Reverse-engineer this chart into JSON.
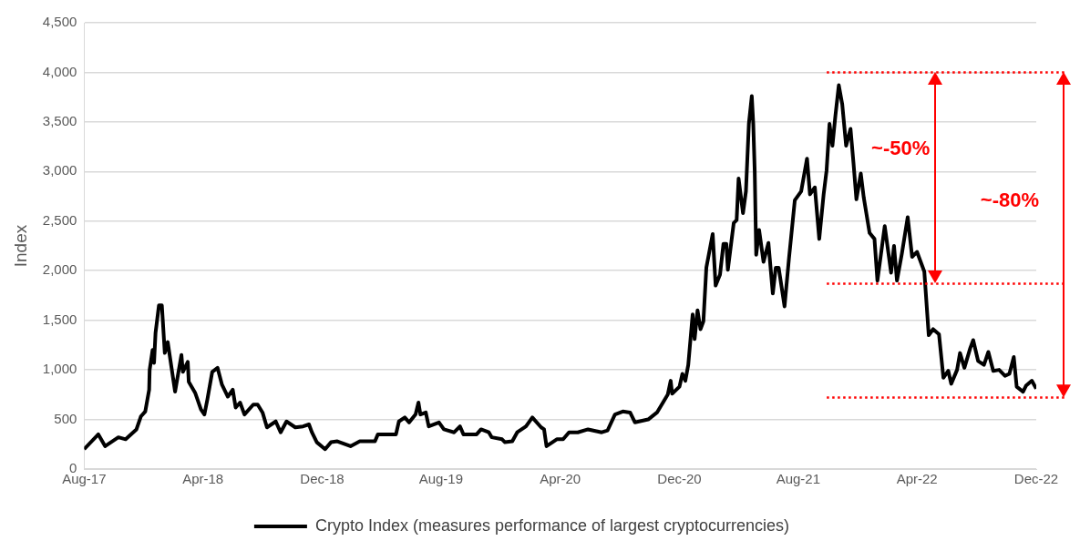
{
  "chart_data": {
    "type": "line",
    "ylabel": "Index",
    "legend": "bottom",
    "grid": "y",
    "marker": "none",
    "line_style": "solid",
    "xlim": [
      "2017-08",
      "2022-12"
    ],
    "xticks": [
      {
        "value": "2017-08",
        "label": "Aug-17"
      },
      {
        "value": "2018-04",
        "label": "Apr-18"
      },
      {
        "value": "2018-12",
        "label": "Dec-18"
      },
      {
        "value": "2019-08",
        "label": "Aug-19"
      },
      {
        "value": "2020-04",
        "label": "Apr-20"
      },
      {
        "value": "2020-12",
        "label": "Dec-20"
      },
      {
        "value": "2021-08",
        "label": "Aug-21"
      },
      {
        "value": "2022-04",
        "label": "Apr-22"
      },
      {
        "value": "2022-12",
        "label": "Dec-22"
      }
    ],
    "ylim": [
      0,
      4500
    ],
    "yticks": [
      0,
      {
        "value": 500,
        "label": "500"
      },
      {
        "value": 1000,
        "label": "1,000"
      },
      {
        "value": 1500,
        "label": "1,500"
      },
      {
        "value": 2000,
        "label": "2,000"
      },
      {
        "value": 2500,
        "label": "2,500"
      },
      {
        "value": 3000,
        "label": "3,000"
      },
      {
        "value": 3500,
        "label": "3,500"
      },
      {
        "value": 4000,
        "label": "4,000"
      },
      {
        "value": 4500,
        "label": "4,500"
      }
    ],
    "series": [
      {
        "name": "Crypto Index (measures performance of largest cryptocurrencies)",
        "color": "#000000",
        "x": [
          "2017-08-01",
          "2017-08-30",
          "2017-09-13",
          "2017-10-10",
          "2017-10-25",
          "2017-11-16",
          "2017-11-25",
          "2017-12-04",
          "2017-12-12",
          "2017-12-13",
          "2017-12-19",
          "2017-12-22",
          "2017-12-25",
          "2018-01-01",
          "2018-01-07",
          "2018-01-13",
          "2018-01-19",
          "2018-02-03",
          "2018-02-16",
          "2018-02-19",
          "2018-03-01",
          "2018-03-03",
          "2018-03-16",
          "2018-03-28",
          "2018-04-04",
          "2018-04-10",
          "2018-04-20",
          "2018-05-01",
          "2018-05-10",
          "2018-05-22",
          "2018-06-01",
          "2018-06-07",
          "2018-06-16",
          "2018-06-25",
          "2018-07-13",
          "2018-07-22",
          "2018-08-01",
          "2018-08-10",
          "2018-08-19",
          "2018-08-28",
          "2018-09-07",
          "2018-09-19",
          "2018-10-07",
          "2018-10-23",
          "2018-11-04",
          "2018-11-10",
          "2018-11-20",
          "2018-12-07",
          "2018-12-19",
          "2019-01-01",
          "2019-01-28",
          "2019-02-16",
          "2019-03-19",
          "2019-03-25",
          "2019-05-01",
          "2019-05-07",
          "2019-05-19",
          "2019-05-28",
          "2019-06-10",
          "2019-06-16",
          "2019-06-20",
          "2019-07-01",
          "2019-07-07",
          "2019-07-28",
          "2019-08-07",
          "2019-08-28",
          "2019-09-09",
          "2019-09-16",
          "2019-10-13",
          "2019-10-22",
          "2019-11-07",
          "2019-11-13",
          "2019-12-04",
          "2019-12-10",
          "2019-12-25",
          "2020-01-04",
          "2020-01-22",
          "2020-02-04",
          "2020-02-22",
          "2020-02-28",
          "2020-03-04",
          "2020-03-16",
          "2020-03-25",
          "2020-04-07",
          "2020-04-19",
          "2020-05-07",
          "2020-05-28",
          "2020-06-25",
          "2020-07-07",
          "2020-07-22",
          "2020-08-07",
          "2020-08-22",
          "2020-09-01",
          "2020-09-28",
          "2020-10-16",
          "2020-11-07",
          "2020-11-13",
          "2020-11-16",
          "2020-12-01",
          "2020-12-07",
          "2020-12-13",
          "2020-12-19",
          "2020-12-28",
          "2021-01-01",
          "2021-01-07",
          "2021-01-13",
          "2021-01-19",
          "2021-01-25",
          "2021-02-07",
          "2021-02-13",
          "2021-02-22",
          "2021-03-01",
          "2021-03-07",
          "2021-03-10",
          "2021-03-22",
          "2021-03-28",
          "2021-04-01",
          "2021-04-10",
          "2021-04-16",
          "2021-04-22",
          "2021-04-28",
          "2021-05-01",
          "2021-05-04",
          "2021-05-07",
          "2021-05-13",
          "2021-05-22",
          "2021-06-01",
          "2021-06-10",
          "2021-06-16",
          "2021-06-22",
          "2021-07-04",
          "2021-07-13",
          "2021-07-25",
          "2021-08-07",
          "2021-08-19",
          "2021-08-25",
          "2021-09-04",
          "2021-09-13",
          "2021-09-22",
          "2021-09-28",
          "2021-10-04",
          "2021-10-10",
          "2021-10-16",
          "2021-10-23",
          "2021-10-30",
          "2021-11-07",
          "2021-11-16",
          "2021-11-22",
          "2021-11-28",
          "2021-12-07",
          "2021-12-13",
          "2021-12-25",
          "2022-01-04",
          "2022-01-10",
          "2022-01-25",
          "2022-02-07",
          "2022-02-13",
          "2022-02-19",
          "2022-03-01",
          "2022-03-13",
          "2022-03-22",
          "2022-04-01",
          "2022-04-16",
          "2022-04-25",
          "2022-05-04",
          "2022-05-16",
          "2022-05-25",
          "2022-06-04",
          "2022-06-10",
          "2022-06-22",
          "2022-06-28",
          "2022-07-07",
          "2022-07-19",
          "2022-07-25",
          "2022-08-04",
          "2022-08-16",
          "2022-08-25",
          "2022-09-04",
          "2022-09-16",
          "2022-09-28",
          "2022-10-07",
          "2022-10-16",
          "2022-10-22",
          "2022-11-04",
          "2022-11-10",
          "2022-11-22",
          "2022-12-01"
        ],
        "values": [
          200,
          350,
          230,
          320,
          300,
          400,
          530,
          580,
          800,
          1000,
          1200,
          1070,
          1370,
          1650,
          1650,
          1170,
          1280,
          780,
          1150,
          980,
          1080,
          880,
          770,
          600,
          550,
          700,
          980,
          1020,
          850,
          730,
          800,
          620,
          670,
          550,
          650,
          650,
          570,
          420,
          450,
          480,
          370,
          480,
          420,
          430,
          450,
          370,
          270,
          200,
          270,
          280,
          230,
          280,
          280,
          350,
          350,
          480,
          520,
          470,
          550,
          670,
          550,
          570,
          430,
          470,
          400,
          370,
          430,
          350,
          350,
          400,
          370,
          320,
          300,
          270,
          280,
          370,
          430,
          520,
          420,
          400,
          230,
          270,
          300,
          300,
          370,
          370,
          400,
          370,
          390,
          550,
          580,
          570,
          470,
          500,
          570,
          750,
          890,
          760,
          830,
          960,
          890,
          1050,
          1560,
          1310,
          1600,
          1410,
          1490,
          2030,
          2370,
          1850,
          1960,
          2270,
          2270,
          2010,
          2480,
          2510,
          2930,
          2580,
          2800,
          3480,
          3760,
          3480,
          3000,
          2160,
          2410,
          2090,
          2280,
          1770,
          2030,
          2030,
          1640,
          2120,
          2710,
          2800,
          3130,
          2770,
          2840,
          2320,
          2770,
          3010,
          3480,
          3260,
          3560,
          3870,
          3680,
          3260,
          3430,
          3090,
          2720,
          2980,
          2740,
          2380,
          2320,
          1900,
          2450,
          1980,
          2250,
          1900,
          2170,
          2540,
          2140,
          2190,
          1990,
          1350,
          1410,
          1360,
          920,
          990,
          860,
          1000,
          1170,
          1020,
          1220,
          1300,
          1090,
          1050,
          1180,
          990,
          1000,
          940,
          960,
          1130,
          830,
          780,
          840,
          890,
          810
        ]
      }
    ],
    "ref_lines": [
      {
        "axis": "y",
        "value": 4000,
        "color": "#ff0000",
        "line_style": "dotted"
      },
      {
        "axis": "y",
        "value": 1870,
        "color": "#ff0000",
        "line_style": "dotted"
      },
      {
        "axis": "y",
        "value": 720,
        "color": "#ff0000",
        "line_style": "dotted"
      }
    ],
    "annotations": [
      "~-50%",
      "~-80%"
    ]
  }
}
